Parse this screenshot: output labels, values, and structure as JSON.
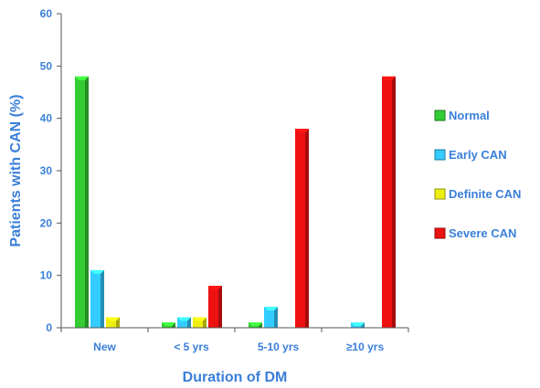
{
  "chart_data": {
    "type": "bar",
    "title": "",
    "xlabel": "Duration of DM",
    "ylabel": "Patients with CAN (%)",
    "categories": [
      "New",
      "< 5 yrs",
      "5-10 yrs",
      "≥10 yrs"
    ],
    "ylim": [
      0,
      60
    ],
    "yticks": [
      "0",
      "10",
      "20",
      "30",
      "40",
      "50",
      "60"
    ],
    "grid": false,
    "legend_position": "right",
    "series": [
      {
        "name": "Normal",
        "color": "#33cc33",
        "values": [
          48,
          1,
          1,
          0
        ]
      },
      {
        "name": "Early CAN",
        "color": "#33ccff",
        "values": [
          11,
          2,
          4,
          1
        ]
      },
      {
        "name": "Definite CAN",
        "color": "#eeee11",
        "values": [
          2,
          2,
          0,
          0
        ]
      },
      {
        "name": "Severe CAN",
        "color": "#ee1111",
        "values": [
          0,
          8,
          38,
          48
        ]
      }
    ],
    "text_color": "#3a7fd9"
  }
}
